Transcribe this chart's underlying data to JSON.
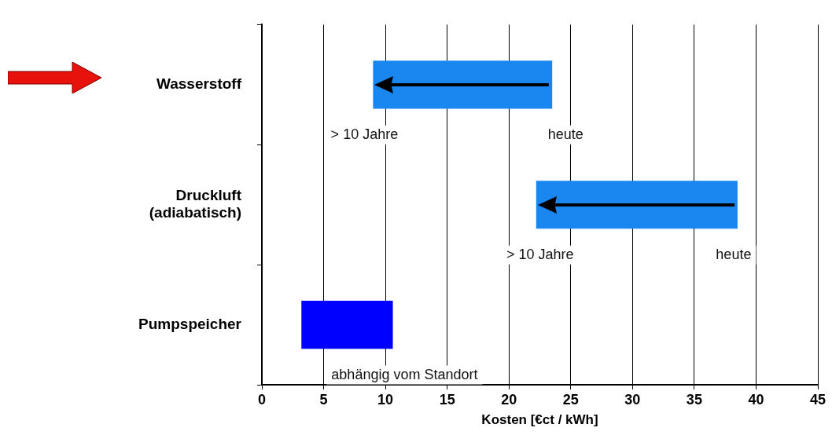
{
  "chart_data": {
    "type": "bar",
    "orientation": "horizontal",
    "xlabel": "Kosten [€ct / kWh]",
    "categories": [
      "Wasserstoff",
      "Druckluft\n(adiabatisch)",
      "Pumpspeicher"
    ],
    "base": [
      9,
      22.2,
      3.2
    ],
    "values": [
      14.5,
      16.3,
      7.4
    ],
    "colors": [
      "#1a86f0",
      "#1a86f0",
      "#0000ff"
    ],
    "xlim": [
      0,
      45
    ],
    "xticks": [
      0,
      5,
      10,
      15,
      20,
      25,
      30,
      35,
      40,
      45
    ],
    "grid": "x",
    "legend": false,
    "annotations": [
      "> 10 Jahre",
      "heute",
      "> 10 Jahre",
      "heute",
      "abhängig vom Standort"
    ]
  }
}
